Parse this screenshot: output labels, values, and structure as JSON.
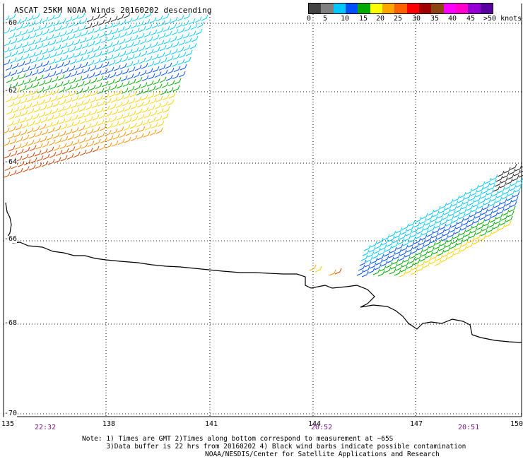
{
  "title": "ASCAT 25KM NOAA Winds 20160202 descending",
  "legend": {
    "colors": [
      "#444444",
      "#808080",
      "#00c8ff",
      "#0050ff",
      "#00aa00",
      "#ffff00",
      "#ffa500",
      "#ff6000",
      "#ff0000",
      "#a00000",
      "#8b4513",
      "#ff00ff",
      "#ff00cc",
      "#9400d3",
      "#5a00a0"
    ],
    "labels": [
      "0",
      "5",
      "10",
      "15",
      "20",
      "25",
      "30",
      "35",
      "40",
      "45",
      ">50 knots"
    ]
  },
  "lat_labels": [
    "-60",
    "-62",
    "-64",
    "-66",
    "-68",
    "-70"
  ],
  "lon_labels": [
    "135",
    "138",
    "141",
    "144",
    "147",
    "150"
  ],
  "times": [
    "22:32",
    "20:52",
    "20:51"
  ],
  "notes": {
    "line1": "Note: 1) Times are GMT 2)Times along bottom correspond to measurement at ~65S",
    "line2": "      3)Data buffer is 22 hrs from 20160202 4) Black wind barbs indicate possible contamination"
  },
  "credit": "NOAA/NESDIS/Center for Satellite Applications and Research"
}
